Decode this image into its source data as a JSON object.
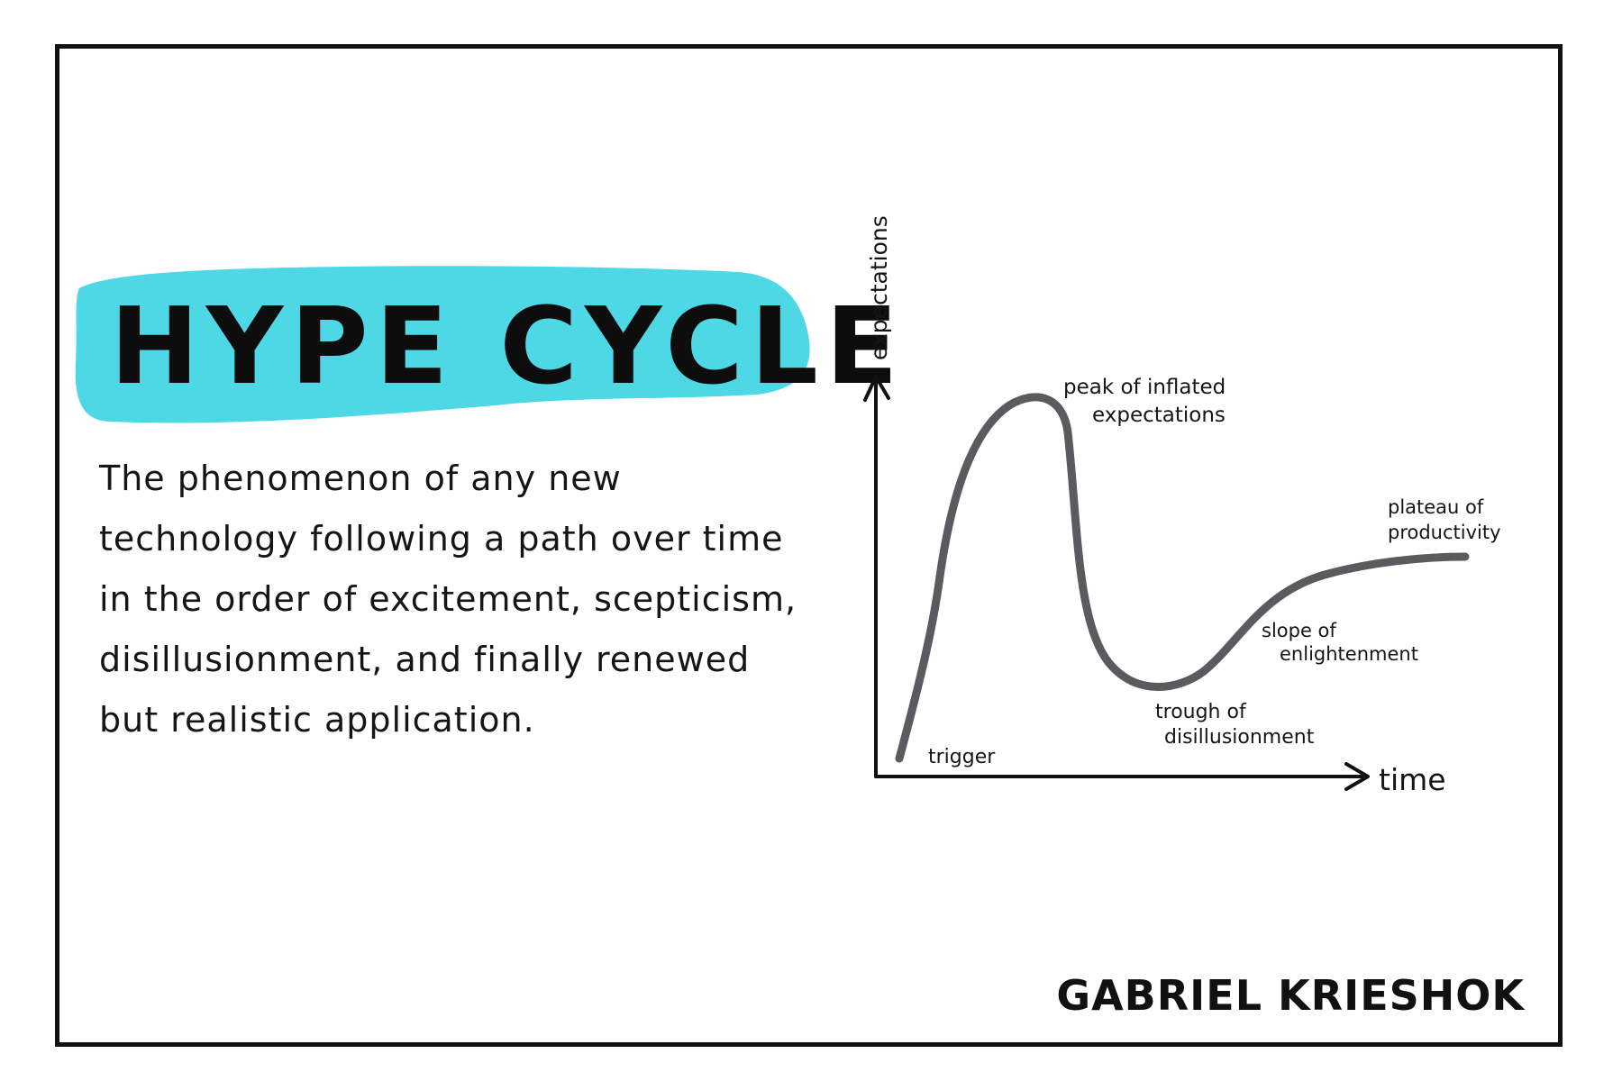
{
  "title": "HYPE CYCLE",
  "description": "The phenomenon of any new technology following a path over time in the order of excitement, scepticism, disillusionment, and finally renewed but realistic application.",
  "chart": {
    "y_axis_label": "expectations",
    "x_axis_label": "time",
    "stages": {
      "trigger": "trigger",
      "peak": [
        "peak of inflated",
        "expectations"
      ],
      "trough": [
        "trough of",
        "disillusionment"
      ],
      "slope": [
        "slope of",
        "enlightenment"
      ],
      "plateau": [
        "plateau of",
        "productivity"
      ]
    }
  },
  "signature": "GABRIEL KRIESHOK",
  "colors": {
    "banner": "#4ed8e6",
    "curve": "#5a5a5f",
    "ink": "#111111"
  }
}
